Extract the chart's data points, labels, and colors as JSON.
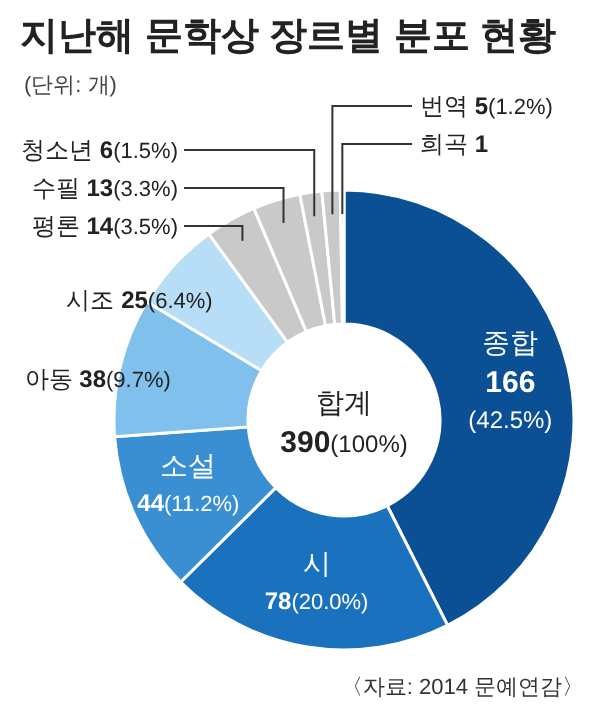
{
  "chart_data": {
    "type": "donut",
    "title": "지난해 문학상 장르별 분포 현황",
    "subtitle": "(단위: 개)",
    "categories": [
      "종합",
      "시",
      "소설",
      "아동",
      "시조",
      "평론",
      "수필",
      "청소년",
      "번역",
      "희곡"
    ],
    "values": [
      166,
      78,
      44,
      38,
      25,
      14,
      13,
      6,
      5,
      1
    ],
    "colors": [
      "#0b4f95",
      "#1a72bf",
      "#3a8fd3",
      "#80c0ec",
      "#b8def7",
      "#c9c9c9",
      "#c9c9c9",
      "#c9c9c9",
      "#c9c9c9",
      "#c9c9c9"
    ],
    "value_labels": [
      "166(42.5%)",
      "78(20.0%)",
      "44(11.2%)",
      "38(9.7%)",
      "25(6.4%)",
      "14(3.5%)",
      "13(3.3%)",
      "6(1.5%)",
      "5(1.2%)",
      "1"
    ],
    "annotations": [
      "합계 390(100%)",
      "〈자료: 2014 문예연감〉"
    ]
  }
}
